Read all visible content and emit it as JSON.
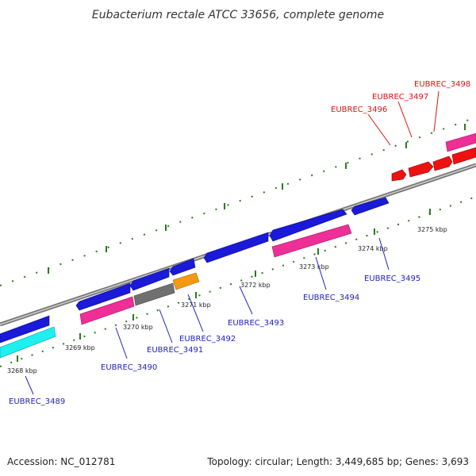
{
  "title": "Eubacterium rectale ATCC 33656, complete genome",
  "footer": {
    "accession": "Accession: NC_012781",
    "summary": "Topology: circular; Length: 3,449,685 bp; Genes: 3,693"
  },
  "colors": {
    "backbone": "#8a8a8a",
    "tick_major": "#2a7a1a",
    "tick_minor": "#2a7a1a",
    "forward_label": "#2222bb",
    "reverse_label": "#dd1111",
    "gene_blue": "#1a1ad8",
    "gene_pink": "#ee2f95",
    "gene_cyan": "#1ef0f0",
    "gene_gray": "#707070",
    "gene_orange": "#f59a10",
    "gene_red": "#ee1111"
  },
  "ticks": [
    "3268 kbp",
    "3269 kbp",
    "3270 kbp",
    "3271 kbp",
    "3272 kbp",
    "3273 kbp",
    "3274 kbp",
    "3275 kbp"
  ],
  "genes": [
    {
      "id": "EUBREC_3489",
      "strand": "forward"
    },
    {
      "id": "EUBREC_3490",
      "strand": "forward"
    },
    {
      "id": "EUBREC_3491",
      "strand": "forward"
    },
    {
      "id": "EUBREC_3492",
      "strand": "forward"
    },
    {
      "id": "EUBREC_3493",
      "strand": "forward"
    },
    {
      "id": "EUBREC_3494",
      "strand": "forward"
    },
    {
      "id": "EUBREC_3495",
      "strand": "forward"
    },
    {
      "id": "EUBREC_3496",
      "strand": "reverse"
    },
    {
      "id": "EUBREC_3497",
      "strand": "reverse"
    },
    {
      "id": "EUBREC_3498",
      "strand": "reverse"
    }
  ]
}
